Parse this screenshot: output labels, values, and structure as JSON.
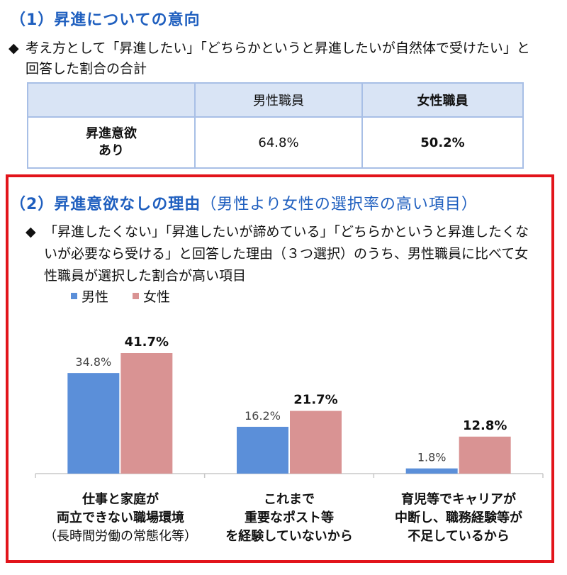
{
  "section1": {
    "title": "（1）昇進についての意向",
    "note": "考え方として「昇進したい」「どちらかというと昇進したいが自然体で受けたい」と回答した割合の合計",
    "table": {
      "col_male": "男性職員",
      "col_female": "女性職員",
      "row_label_line1": "昇進意欲",
      "row_label_line2": "あり",
      "male_value": "64.8%",
      "female_value": "50.2%"
    }
  },
  "section2": {
    "title": "（2）昇進意欲なしの理由",
    "subtitle": "（男性より女性の選択率の高い項目）",
    "note": "「昇進したくない」「昇進したいが諦めている」「どちらかというと昇進したくないが必要なら受ける」と回答した理由（３つ選択）のうち、男性職員に比べて女性職員が選択した割合が高い項目"
  },
  "diamond": "◆",
  "colors": {
    "male": "#5b8fd9",
    "female": "#d99393",
    "accent": "#1f5fbf",
    "frame": "#e2141b"
  },
  "chart_data": {
    "type": "bar",
    "categories": [
      "仕事と家庭が両立できない職場環境（長時間労働の常態化等）",
      "これまで重要なポスト等を経験していないから",
      "育児等でキャリアが中断し、職務経験等が不足しているから"
    ],
    "category_lines": [
      [
        "仕事と家庭が",
        "両立できない職場環境",
        "（長時間労働の常態化等）"
      ],
      [
        "これまで",
        "重要なポスト等",
        "を経験していないから"
      ],
      [
        "育児等でキャリアが",
        "中断し、職務経験等が",
        "不足しているから"
      ]
    ],
    "series": [
      {
        "name": "男性",
        "values": [
          34.8,
          16.2,
          1.8
        ]
      },
      {
        "name": "女性",
        "values": [
          41.7,
          21.7,
          12.8
        ]
      }
    ],
    "value_labels": [
      [
        "34.8%",
        "16.2%",
        "1.8%"
      ],
      [
        "41.7%",
        "21.7%",
        "12.8%"
      ]
    ],
    "ylim": [
      0,
      45
    ],
    "legend_position": "top-left",
    "grid": false
  }
}
